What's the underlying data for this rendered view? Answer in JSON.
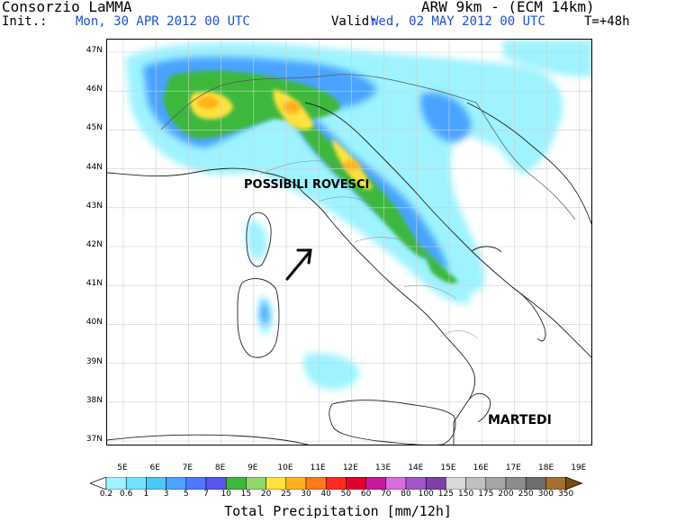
{
  "header": {
    "organization": "Consorzio LaMMA",
    "model": "ARW 9km - (ECM 14km)",
    "init_label": "Init.:",
    "init_value": "Mon, 30 APR 2012  00 UTC",
    "valid_label": "Valid:",
    "valid_value": "Wed, 02 MAY 2012  00 UTC",
    "forecast_step": "T=+48h"
  },
  "map": {
    "lat_labels": [
      "47N",
      "46N",
      "45N",
      "44N",
      "43N",
      "42N",
      "41N",
      "40N",
      "39N",
      "38N",
      "37N"
    ],
    "lon_labels": [
      "5E",
      "6E",
      "7E",
      "8E",
      "9E",
      "10E",
      "11E",
      "12E",
      "13E",
      "14E",
      "15E",
      "16E",
      "17E",
      "18E",
      "19E"
    ],
    "annotations": {
      "showers": "POSSIBILI ROVESCI",
      "day": "MARTEDI"
    },
    "arrow": "arrow pointing toward the Tuscan coast"
  },
  "colorbar": {
    "title": "Total Precipitation [mm/12h]",
    "ticks": [
      "0.2",
      "0.6",
      "1",
      "3",
      "5",
      "7",
      "10",
      "15",
      "20",
      "25",
      "30",
      "40",
      "50",
      "60",
      "70",
      "80",
      "100",
      "125",
      "150",
      "175",
      "200",
      "250",
      "300",
      "350"
    ],
    "colors": [
      "#ffffff",
      "#9ef3ff",
      "#6fe2ff",
      "#4cc8f5",
      "#4aa3ff",
      "#4d78ff",
      "#5b55ee",
      "#3cb83c",
      "#8ed86a",
      "#ffe23c",
      "#ffb21e",
      "#ff7a1e",
      "#ff2a1e",
      "#e0002d",
      "#c31a9e",
      "#d96be0",
      "#a055c8",
      "#7d3fa8",
      "#d9d9d9",
      "#bfbfbf",
      "#a6a6a6",
      "#8c8c8c",
      "#6e6e6e",
      "#a5702e",
      "#7a4a12"
    ]
  }
}
